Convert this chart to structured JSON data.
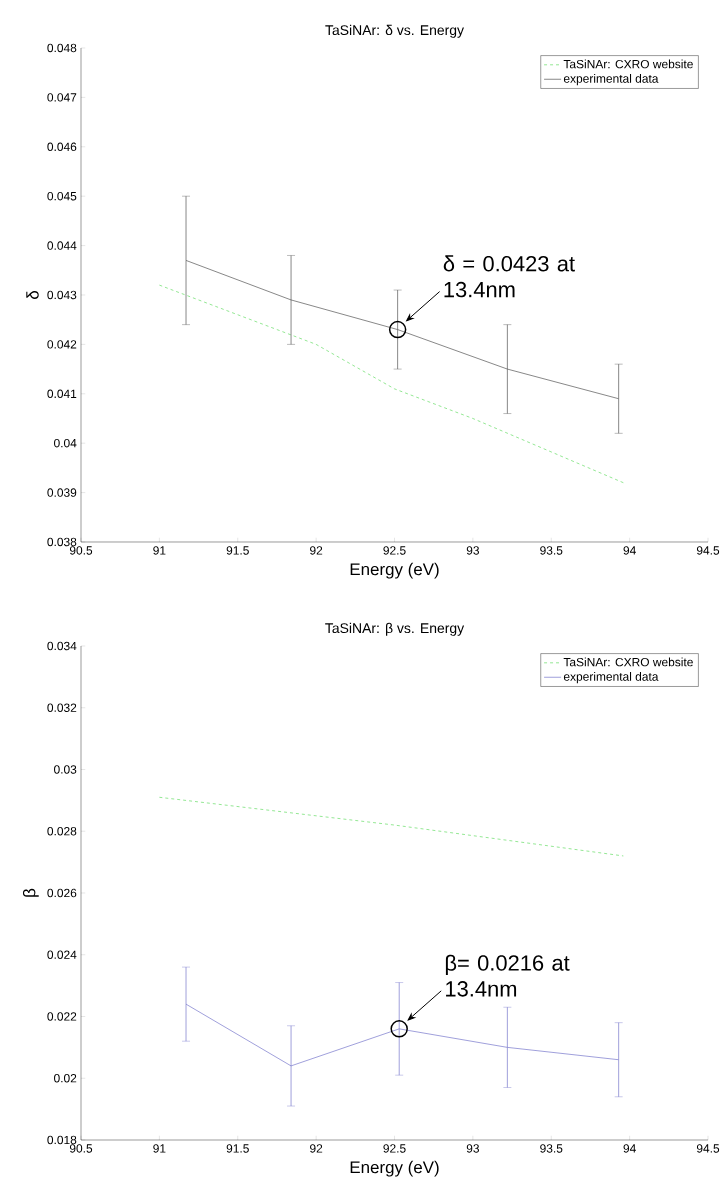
{
  "chart_data": [
    {
      "type": "line",
      "title": "TaSiNAr: δ vs. Energy",
      "xlabel": "Energy (eV)",
      "ylabel": "δ",
      "xlim": [
        90.5,
        94.5
      ],
      "xticks": [
        90.5,
        91,
        91.5,
        92,
        92.5,
        93,
        93.5,
        94,
        94.5
      ],
      "ylim": [
        0.038,
        0.048
      ],
      "yticks": [
        0.038,
        0.039,
        0.04,
        0.041,
        0.042,
        0.043,
        0.044,
        0.045,
        0.046,
        0.047,
        0.048
      ],
      "legend": "top right",
      "series": [
        {
          "name": "TaSiNAr: CXRO website",
          "color": "#66dd66",
          "line_style": "dashed",
          "x": [
            91.0,
            92.0,
            92.5,
            93.0,
            93.96
          ],
          "values": [
            0.0432,
            0.042,
            0.0411,
            0.0405,
            0.0392
          ]
        },
        {
          "name": "experimental data",
          "color": "#555555",
          "line_style": "solid",
          "x": [
            91.17,
            91.84,
            92.52,
            93.22,
            93.93
          ],
          "values": [
            0.0437,
            0.0429,
            0.0423,
            0.0415,
            0.0409
          ],
          "errors": [
            0.0013,
            0.0009,
            0.0008,
            0.0009,
            0.0007
          ]
        }
      ],
      "annotations": [
        {
          "text": "δ = 0.0423 at 13.4nm",
          "x": 92.52,
          "y": 0.0423
        }
      ]
    },
    {
      "type": "line",
      "title": "TaSiNAr: β vs. Energy",
      "xlabel": "Energy (eV)",
      "ylabel": "β",
      "xlim": [
        90.5,
        94.5
      ],
      "xticks": [
        90.5,
        91,
        91.5,
        92,
        92.5,
        93,
        93.5,
        94,
        94.5
      ],
      "ylim": [
        0.018,
        0.034
      ],
      "yticks": [
        0.018,
        0.02,
        0.022,
        0.024,
        0.026,
        0.028,
        0.03,
        0.032,
        0.034
      ],
      "legend": "top right",
      "series": [
        {
          "name": "TaSiNAr: CXRO website",
          "color": "#66dd66",
          "line_style": "dashed",
          "x": [
            91.0,
            92.5,
            93.96
          ],
          "values": [
            0.0291,
            0.0282,
            0.0272
          ]
        },
        {
          "name": "experimental data",
          "color": "#7777cc",
          "line_style": "solid",
          "x": [
            91.17,
            91.84,
            92.53,
            93.22,
            93.93
          ],
          "values": [
            0.0224,
            0.0204,
            0.0216,
            0.021,
            0.0206
          ],
          "errors": [
            0.0012,
            0.0013,
            0.0015,
            0.0013,
            0.0012
          ]
        }
      ],
      "annotations": [
        {
          "text": "β= 0.0216 at 13.4nm",
          "x": 92.53,
          "y": 0.0216
        }
      ]
    }
  ]
}
